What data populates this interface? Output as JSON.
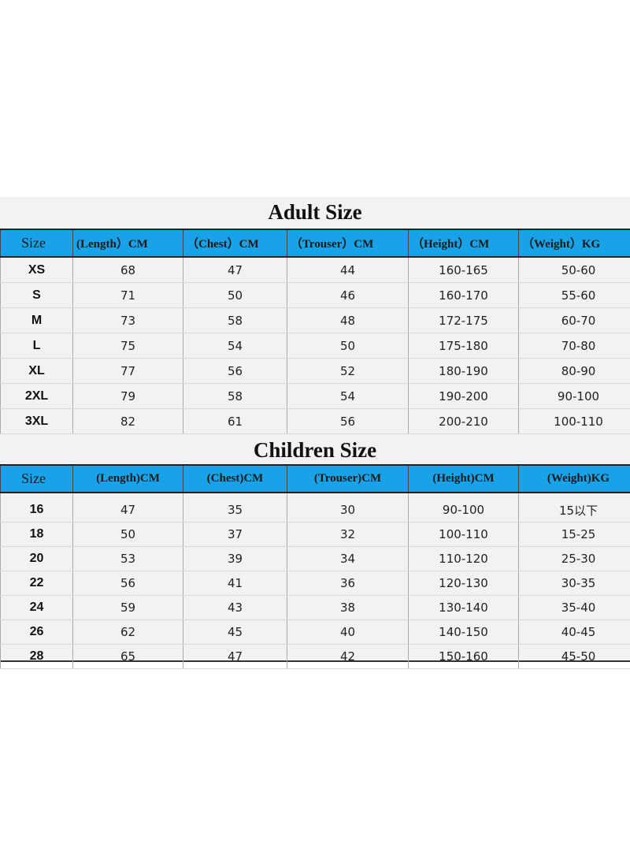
{
  "adult": {
    "title": "Adult Size",
    "headers": [
      "Size",
      "(Length）CM",
      "（Chest）CM",
      "（Trouser）CM",
      "（Height）CM",
      "（Weight）KG"
    ],
    "rows": [
      [
        "XS",
        "68",
        "47",
        "44",
        "160-165",
        "50-60"
      ],
      [
        "S",
        "71",
        "50",
        "46",
        "160-170",
        "55-60"
      ],
      [
        "M",
        "73",
        "58",
        "48",
        "172-175",
        "60-70"
      ],
      [
        "L",
        "75",
        "54",
        "50",
        "175-180",
        "70-80"
      ],
      [
        "XL",
        "77",
        "56",
        "52",
        "180-190",
        "80-90"
      ],
      [
        "2XL",
        "79",
        "58",
        "54",
        "190-200",
        "90-100"
      ],
      [
        "3XL",
        "82",
        "61",
        "56",
        "200-210",
        "100-110"
      ]
    ]
  },
  "children": {
    "title": "Children Size",
    "headers": [
      "Size",
      "(Length)CM",
      "(Chest)CM",
      "(Trouser)CM",
      "(Height)CM",
      "(Weight)KG"
    ],
    "rows": [
      [
        "16",
        "47",
        "35",
        "30",
        "90-100",
        "15以下"
      ],
      [
        "18",
        "50",
        "37",
        "32",
        "100-110",
        "15-25"
      ],
      [
        "20",
        "53",
        "39",
        "34",
        "110-120",
        "25-30"
      ],
      [
        "22",
        "56",
        "41",
        "36",
        "120-130",
        "30-35"
      ],
      [
        "24",
        "59",
        "43",
        "38",
        "130-140",
        "35-40"
      ],
      [
        "26",
        "62",
        "45",
        "40",
        "140-150",
        "40-45"
      ],
      [
        "28",
        "65",
        "47",
        "42",
        "150-160",
        "45-50"
      ]
    ]
  },
  "colors": {
    "header_bg": "#18a2e8",
    "sheet_bg": "#f2f2f2"
  }
}
